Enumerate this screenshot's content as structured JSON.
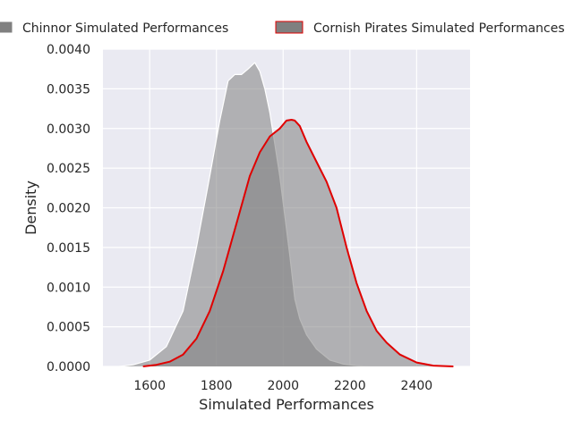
{
  "chart_data": {
    "type": "area",
    "title": "",
    "xlabel": "Simulated Performances",
    "ylabel": "Density",
    "xlim": [
      1460,
      2560
    ],
    "ylim": [
      0,
      0.004
    ],
    "xticks": [
      1600,
      1800,
      2000,
      2200,
      2400
    ],
    "yticks": [
      0.0,
      0.0005,
      0.001,
      0.0015,
      0.002,
      0.0025,
      0.003,
      0.0035,
      0.004
    ],
    "xtick_labels": [
      "1600",
      "1800",
      "2000",
      "2200",
      "2400"
    ],
    "ytick_labels": [
      "0.0000",
      "0.0005",
      "0.0010",
      "0.0015",
      "0.0020",
      "0.0025",
      "0.0030",
      "0.0035",
      "0.0040"
    ],
    "grid": true,
    "legend_position": "top-center",
    "background": "#EAEAF2",
    "series": [
      {
        "name": "Chinnor Simulated Performances",
        "fill": "#808080",
        "line_color": "#FFFFFF",
        "x": [
          1510,
          1550,
          1600,
          1650,
          1700,
          1740,
          1780,
          1810,
          1835,
          1855,
          1875,
          1895,
          1915,
          1930,
          1945,
          1960,
          1975,
          1990,
          2005,
          2020,
          2035,
          2050,
          2070,
          2100,
          2140,
          2180,
          2220,
          2260,
          2300
        ],
        "y": [
          0.0,
          2e-05,
          8e-05,
          0.00025,
          0.0007,
          0.0015,
          0.0024,
          0.0031,
          0.0036,
          0.00368,
          0.00368,
          0.00375,
          0.00383,
          0.00372,
          0.0035,
          0.0032,
          0.0028,
          0.0024,
          0.0019,
          0.0014,
          0.00085,
          0.0006,
          0.0004,
          0.00022,
          8e-05,
          3e-05,
          1e-05,
          0.0,
          0.0
        ]
      },
      {
        "name": "Cornish Pirates Simulated Performances",
        "fill": "#808080",
        "line_color": "#E00000",
        "x": [
          1580,
          1620,
          1660,
          1700,
          1740,
          1780,
          1820,
          1860,
          1900,
          1930,
          1960,
          1990,
          2010,
          2025,
          2035,
          2050,
          2070,
          2100,
          2130,
          2160,
          2190,
          2220,
          2250,
          2280,
          2310,
          2350,
          2400,
          2450,
          2510
        ],
        "y": [
          0.0,
          2e-05,
          6e-05,
          0.00015,
          0.00035,
          0.0007,
          0.0012,
          0.0018,
          0.0024,
          0.0027,
          0.0029,
          0.003,
          0.0031,
          0.00311,
          0.0031,
          0.00303,
          0.00283,
          0.00258,
          0.00233,
          0.002,
          0.0015,
          0.00105,
          0.0007,
          0.00045,
          0.0003,
          0.00015,
          5e-05,
          1e-05,
          0.0
        ]
      }
    ]
  }
}
